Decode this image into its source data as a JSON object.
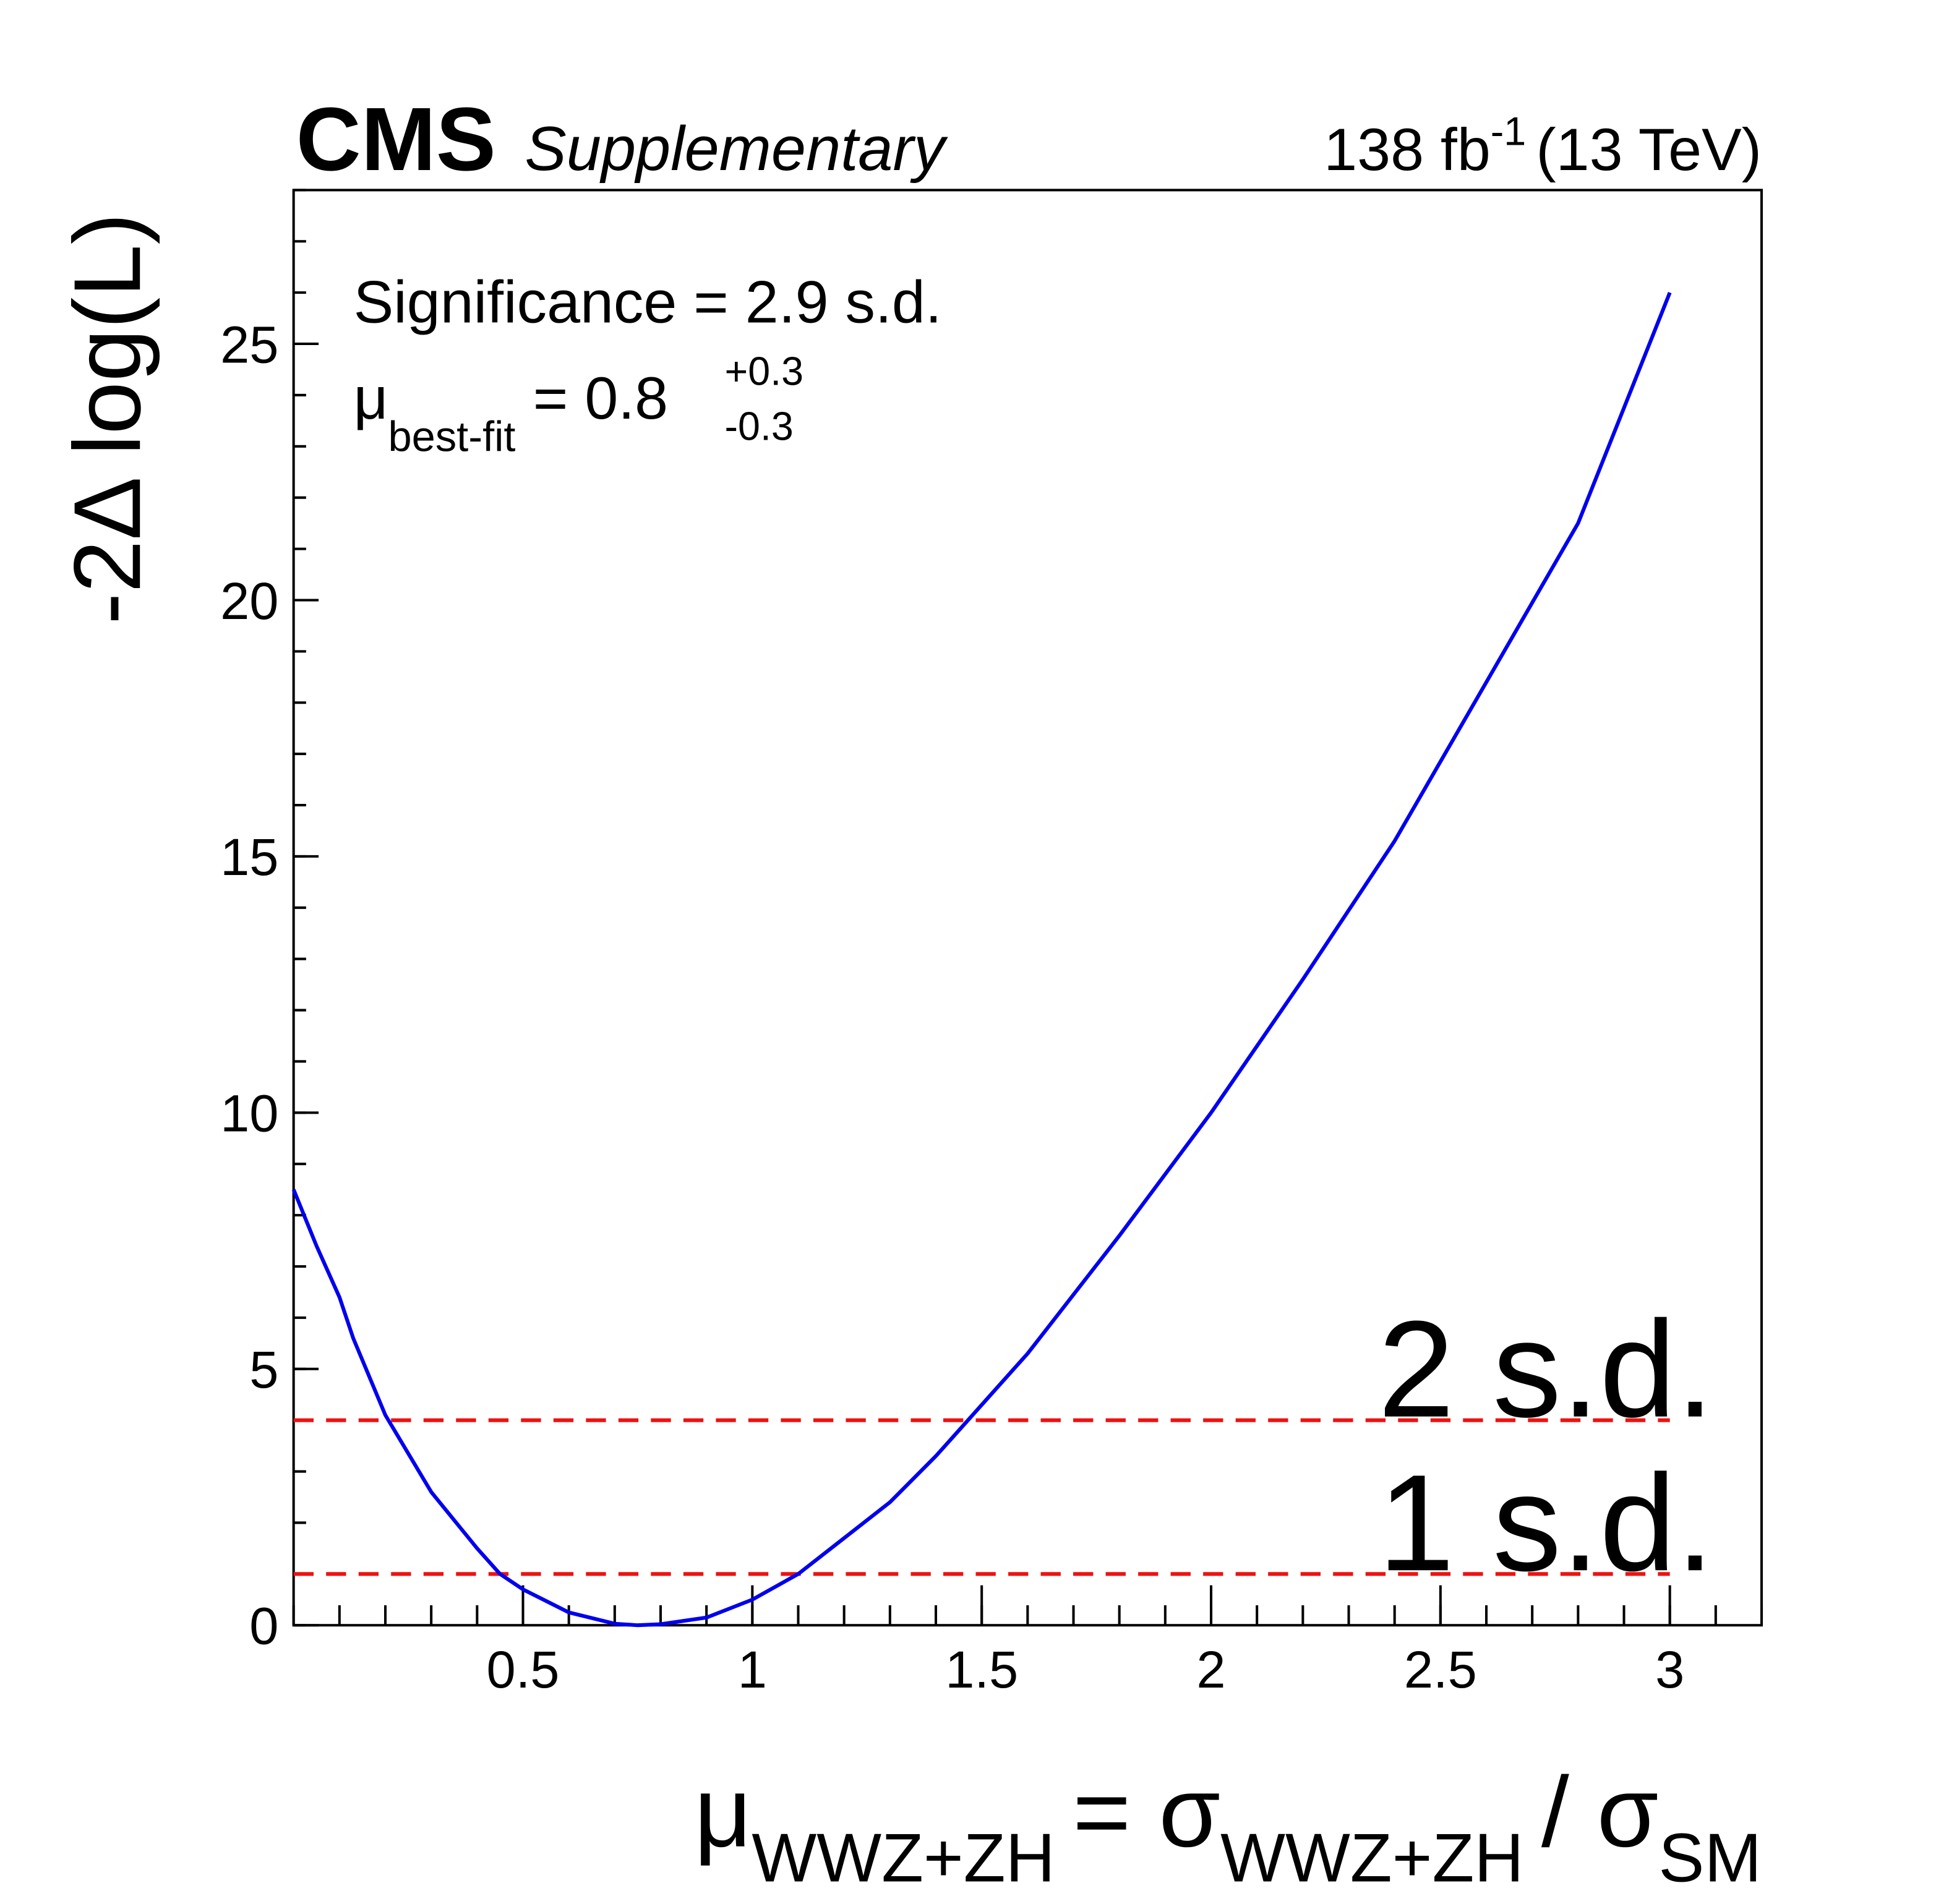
{
  "chart_data": {
    "type": "line",
    "experiment": "CMS",
    "experiment_note": "Supplementary",
    "lumi": {
      "text": "138 fb",
      "sup": "-1",
      "energy": "(13 TeV)"
    },
    "annotations": {
      "significance": "Significance = 2.9 s.d.",
      "best_fit": {
        "symbol": "μ",
        "sub": "best-fit",
        "value": "= 0.8",
        "up": "+0.3",
        "down": "-0.3"
      }
    },
    "y_label": "-2Δ log(L)",
    "x_label": [
      {
        "text": "μ",
        "sub": "WWZ+ZH"
      },
      {
        "text": "= σ",
        "sub": "WWZ+ZH"
      },
      {
        "text": "/ σ",
        "sub": "SM"
      }
    ],
    "x": [
      0.0,
      0.05,
      0.1,
      0.13,
      0.2,
      0.3,
      0.4,
      0.45,
      0.5,
      0.6,
      0.7,
      0.75,
      0.8,
      0.9,
      1.0,
      1.1,
      1.2,
      1.3,
      1.4,
      1.47,
      1.5,
      1.6,
      1.8,
      2.0,
      2.2,
      2.4,
      2.6,
      2.8,
      3.0
    ],
    "series": [
      {
        "color": "#0000ee",
        "values": [
          8.5,
          7.4,
          6.4,
          5.6,
          4.1,
          2.6,
          1.5,
          1.0,
          0.7,
          0.25,
          0.03,
          0.0,
          0.02,
          0.15,
          0.5,
          1.0,
          1.7,
          2.4,
          3.3,
          4.0,
          4.3,
          5.3,
          7.6,
          10.0,
          12.6,
          15.3,
          18.4,
          21.5,
          26.0
        ]
      }
    ],
    "hlines": [
      {
        "value": 1,
        "label": "1 s.d."
      },
      {
        "value": 4,
        "label": "2 s.d."
      }
    ],
    "hline_color": "#ee1111",
    "xlim": [
      0,
      3.2
    ],
    "xticks": [
      0.5,
      1,
      1.5,
      2,
      2.5,
      3
    ],
    "ylim": [
      0,
      28
    ],
    "yticks": [
      0,
      5,
      10,
      15,
      20,
      25
    ]
  }
}
